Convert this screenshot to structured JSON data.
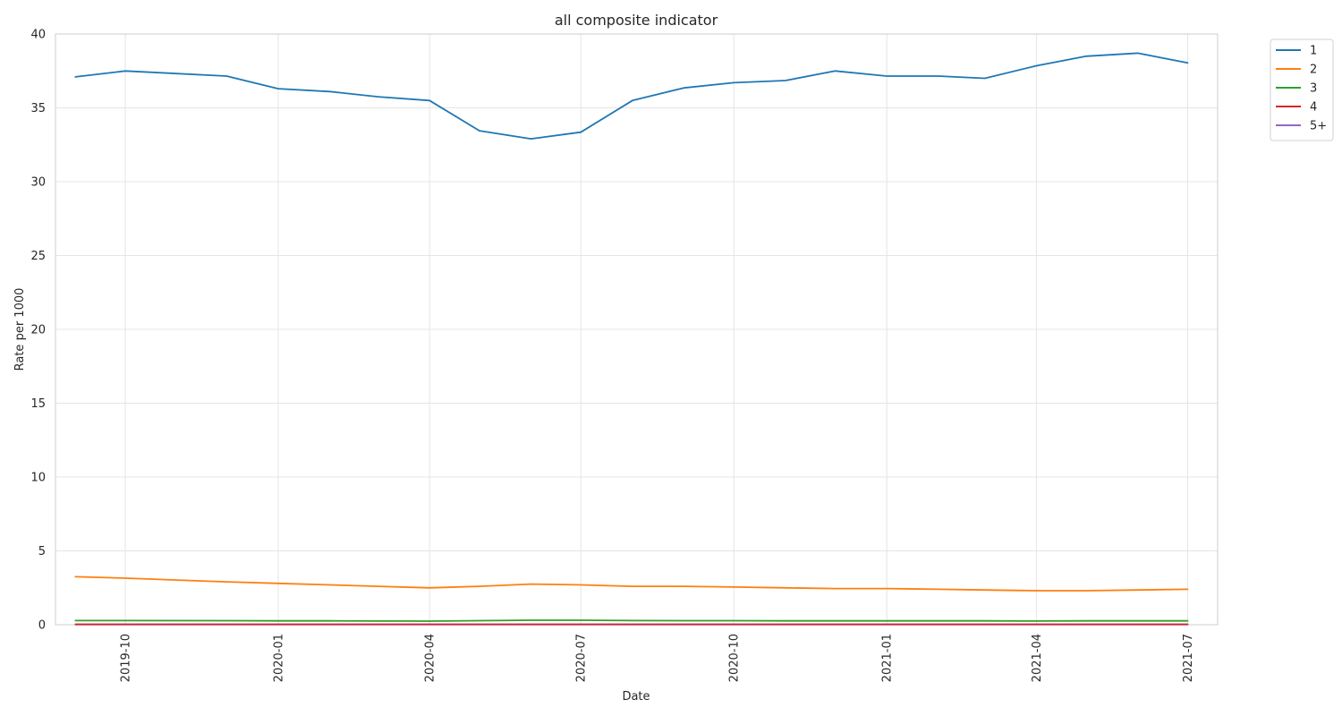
{
  "chart_data": {
    "type": "line",
    "title": "all composite indicator",
    "xlabel": "Date",
    "ylabel": "Rate per 1000",
    "ylim": [
      0,
      40
    ],
    "yticks": [
      0,
      5,
      10,
      15,
      20,
      25,
      30,
      35,
      40
    ],
    "xlim": [
      "2019-08-20",
      "2021-07-19"
    ],
    "xticks": [
      "2019-10",
      "2020-01",
      "2020-04",
      "2020-07",
      "2020-10",
      "2021-01",
      "2021-04",
      "2021-07"
    ],
    "grid": true,
    "legend_position": "outside top-right",
    "x": [
      "2019-09-01",
      "2019-10-01",
      "2019-12-01",
      "2020-01-01",
      "2020-02-01",
      "2020-03-01",
      "2020-04-01",
      "2020-05-01",
      "2020-06-01",
      "2020-07-01",
      "2020-08-01",
      "2020-09-01",
      "2020-10-01",
      "2020-11-01",
      "2020-12-01",
      "2021-01-01",
      "2021-02-01",
      "2021-03-01",
      "2021-04-01",
      "2021-05-01",
      "2021-06-01",
      "2021-07-01"
    ],
    "series": [
      {
        "name": "1",
        "color": "#1f77b4",
        "values": [
          37.1,
          37.5,
          37.15,
          36.3,
          36.1,
          35.75,
          35.5,
          33.45,
          32.9,
          33.35,
          35.5,
          36.35,
          36.7,
          36.85,
          37.5,
          37.15,
          37.15,
          37.0,
          37.85,
          38.5,
          38.7,
          38.05
        ]
      },
      {
        "name": "2",
        "color": "#ff7f0e",
        "values": [
          3.25,
          3.15,
          2.9,
          2.8,
          2.7,
          2.6,
          2.5,
          2.6,
          2.75,
          2.7,
          2.6,
          2.6,
          2.55,
          2.5,
          2.45,
          2.45,
          2.4,
          2.35,
          2.3,
          2.3,
          2.35,
          2.4
        ]
      },
      {
        "name": "3",
        "color": "#2ca02c",
        "values": [
          0.28,
          0.28,
          0.27,
          0.26,
          0.26,
          0.25,
          0.24,
          0.27,
          0.3,
          0.3,
          0.28,
          0.27,
          0.27,
          0.26,
          0.26,
          0.26,
          0.26,
          0.26,
          0.25,
          0.26,
          0.26,
          0.26
        ]
      },
      {
        "name": "4",
        "color": "#d62728",
        "values": [
          0.03,
          0.03,
          0.03,
          0.03,
          0.03,
          0.03,
          0.03,
          0.03,
          0.03,
          0.03,
          0.03,
          0.03,
          0.03,
          0.03,
          0.03,
          0.03,
          0.03,
          0.03,
          0.03,
          0.03,
          0.03,
          0.03
        ]
      },
      {
        "name": "5+",
        "color": "#9467bd",
        "values": [
          0.01,
          0.01,
          0.01,
          0.01,
          0.01,
          0.01,
          0.01,
          0.01,
          0.01,
          0.01,
          0.01,
          0.01,
          0.01,
          0.01,
          0.01,
          0.01,
          0.01,
          0.01,
          0.01,
          0.01,
          0.01,
          0.01
        ]
      }
    ]
  }
}
